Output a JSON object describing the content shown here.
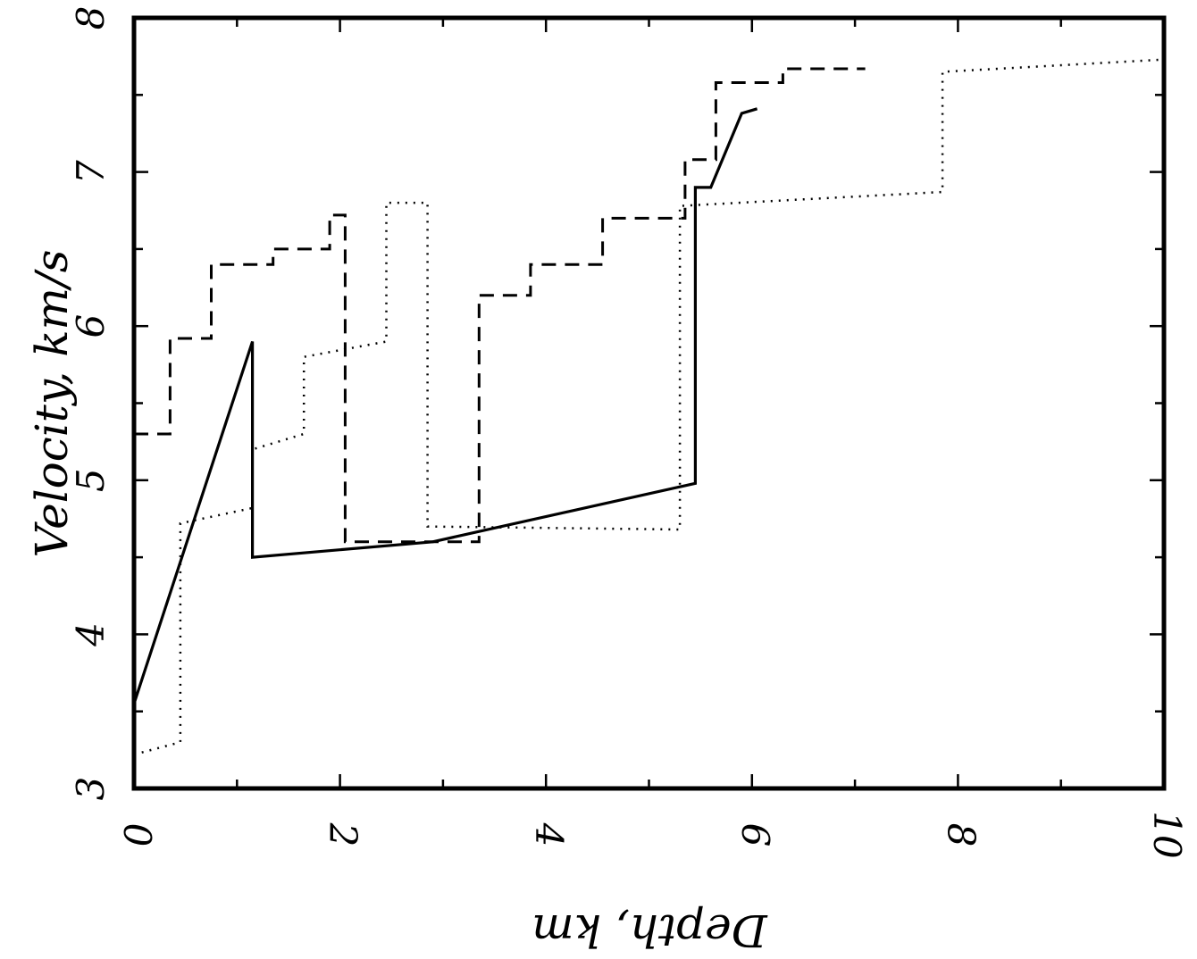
{
  "chart_data": {
    "type": "line",
    "title": "",
    "xlabel": "Depth, km",
    "ylabel": "Velocity, km/s",
    "xlim": [
      0,
      10
    ],
    "ylim": [
      3,
      8
    ],
    "x_ticks": [
      "0",
      "2",
      "4",
      "6",
      "8",
      "10"
    ],
    "y_ticks": [
      "3",
      "4",
      "5",
      "6",
      "7",
      "8"
    ],
    "grid": false,
    "legend": "none",
    "series": [
      {
        "style": "solid",
        "points": [
          [
            0,
            3.55
          ],
          [
            1.15,
            5.9
          ],
          [
            1.15,
            4.5
          ],
          [
            2.9,
            4.6
          ],
          [
            5.45,
            4.98
          ],
          [
            5.45,
            6.9
          ],
          [
            5.6,
            6.9
          ],
          [
            5.9,
            7.38
          ],
          [
            6.05,
            7.41
          ]
        ]
      },
      {
        "style": "dashed",
        "points": [
          [
            0,
            5.3
          ],
          [
            0.35,
            5.3
          ],
          [
            0.35,
            5.92
          ],
          [
            0.75,
            5.92
          ],
          [
            0.75,
            6.4
          ],
          [
            1.35,
            6.4
          ],
          [
            1.35,
            6.5
          ],
          [
            1.9,
            6.5
          ],
          [
            1.9,
            6.72
          ],
          [
            2.05,
            6.72
          ],
          [
            2.05,
            4.6
          ],
          [
            3.35,
            4.6
          ],
          [
            3.35,
            6.2
          ],
          [
            3.85,
            6.2
          ],
          [
            3.85,
            6.4
          ],
          [
            4.55,
            6.4
          ],
          [
            4.55,
            6.7
          ],
          [
            5.35,
            6.7
          ],
          [
            5.35,
            7.08
          ],
          [
            5.65,
            7.08
          ],
          [
            5.65,
            7.58
          ],
          [
            6.3,
            7.58
          ],
          [
            6.3,
            7.67
          ],
          [
            7.1,
            7.67
          ]
        ]
      },
      {
        "style": "dotted",
        "points": [
          [
            0,
            3.22
          ],
          [
            0.45,
            3.3
          ],
          [
            0.45,
            4.72
          ],
          [
            1.15,
            4.82
          ],
          [
            1.15,
            5.2
          ],
          [
            1.65,
            5.3
          ],
          [
            1.65,
            5.8
          ],
          [
            2.45,
            5.9
          ],
          [
            2.45,
            6.8
          ],
          [
            2.85,
            6.8
          ],
          [
            2.85,
            4.7
          ],
          [
            5.3,
            4.68
          ],
          [
            5.3,
            6.78
          ],
          [
            7.85,
            6.87
          ],
          [
            7.85,
            7.65
          ],
          [
            10,
            7.73
          ]
        ]
      }
    ]
  }
}
